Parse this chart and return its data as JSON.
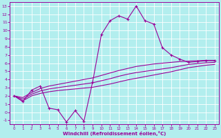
{
  "xlabel": "Windchill (Refroidissement éolien,°C)",
  "background_color": "#b2eeee",
  "grid_color": "#ffffff",
  "line_color": "#990099",
  "xlim": [
    -0.5,
    23.5
  ],
  "ylim": [
    -1.5,
    13.5
  ],
  "xticks": [
    0,
    1,
    2,
    3,
    4,
    5,
    6,
    7,
    8,
    9,
    10,
    11,
    12,
    13,
    14,
    15,
    16,
    17,
    18,
    19,
    20,
    21,
    22,
    23
  ],
  "yticks": [
    -1,
    0,
    1,
    2,
    3,
    4,
    5,
    6,
    7,
    8,
    9,
    10,
    11,
    12,
    13
  ],
  "zigzag_x": [
    0,
    1,
    2,
    3,
    4,
    5,
    6,
    7,
    8,
    9,
    10,
    11,
    12,
    13,
    14,
    15,
    16,
    17,
    18,
    19,
    20,
    21,
    22,
    23
  ],
  "zigzag_y": [
    2.0,
    1.3,
    2.7,
    3.2,
    0.5,
    0.3,
    -1.2,
    0.2,
    -1.1,
    3.7,
    9.5,
    11.2,
    11.8,
    11.4,
    13.0,
    11.2,
    10.8,
    7.9,
    7.0,
    6.5,
    6.1,
    6.2,
    6.3,
    6.3
  ],
  "upper_x": [
    0,
    1,
    2,
    3,
    4,
    5,
    6,
    7,
    8,
    9,
    10,
    11,
    12,
    13,
    14,
    15,
    16,
    17,
    18,
    19,
    20,
    21,
    22,
    23
  ],
  "upper_y": [
    2.0,
    1.8,
    2.4,
    2.9,
    3.2,
    3.4,
    3.6,
    3.8,
    4.0,
    4.2,
    4.5,
    4.8,
    5.1,
    5.35,
    5.6,
    5.75,
    5.9,
    6.0,
    6.1,
    6.2,
    6.25,
    6.3,
    6.35,
    6.35
  ],
  "mid_x": [
    0,
    1,
    2,
    3,
    4,
    5,
    6,
    7,
    8,
    9,
    10,
    11,
    12,
    13,
    14,
    15,
    16,
    17,
    18,
    19,
    20,
    21,
    22,
    23
  ],
  "mid_y": [
    2.0,
    1.6,
    2.2,
    2.6,
    2.85,
    3.0,
    3.15,
    3.3,
    3.45,
    3.6,
    3.85,
    4.1,
    4.4,
    4.65,
    4.85,
    5.0,
    5.15,
    5.3,
    5.45,
    5.65,
    5.85,
    5.95,
    6.05,
    6.1
  ],
  "lower_x": [
    0,
    1,
    2,
    3,
    4,
    5,
    6,
    7,
    8,
    9,
    10,
    11,
    12,
    13,
    14,
    15,
    16,
    17,
    18,
    19,
    20,
    21,
    22,
    23
  ],
  "lower_y": [
    2.0,
    1.4,
    2.0,
    2.3,
    2.5,
    2.65,
    2.75,
    2.85,
    2.95,
    3.05,
    3.25,
    3.45,
    3.7,
    3.95,
    4.15,
    4.35,
    4.55,
    4.75,
    4.95,
    5.2,
    5.45,
    5.6,
    5.75,
    5.85
  ]
}
